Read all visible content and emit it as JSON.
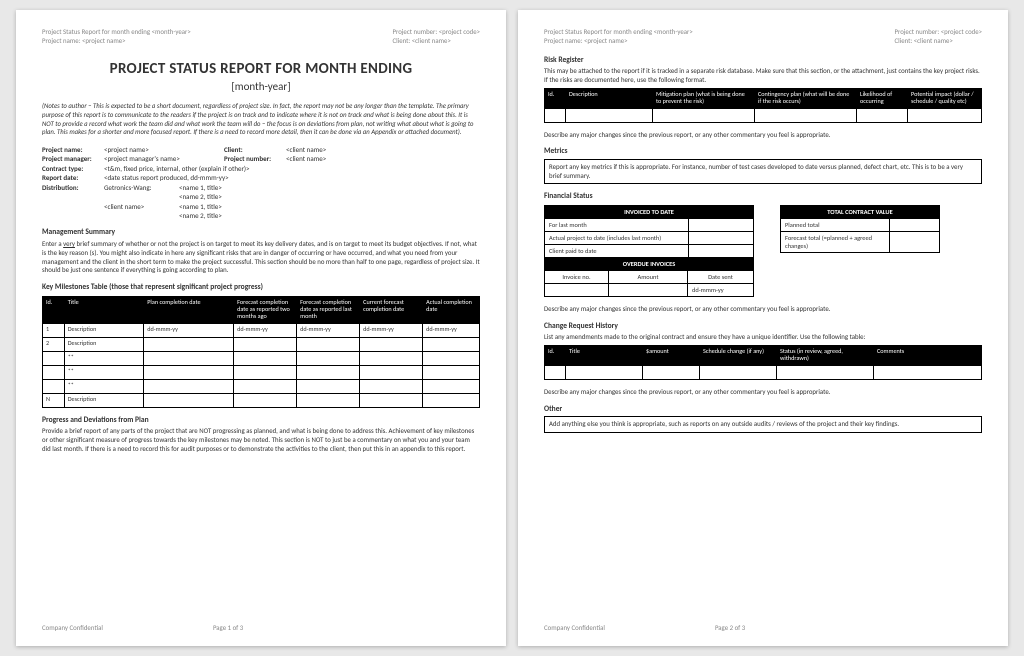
{
  "header": {
    "left1": "Project Status Report for month ending <month-year>",
    "left2": "Project name: <project name>",
    "right1": "Project number: <project code>",
    "right2": "Client: <client name>"
  },
  "page1": {
    "title": "PROJECT STATUS REPORT FOR MONTH ENDING",
    "subtitle": "[month-year]",
    "notes": "(Notes to author – This is expected to be a short document, regardless of project size.  In fact, the report may not be any longer than the template.  The primary purpose of this report is to communicate to the readers if the project is on track and to indicate where it is not on track and what is being done about this.  It is NOT to provide a record what work the team did and what work the team will do – the focus is on deviations from plan, not writing what about what is going to plan.  This makes for a shorter and more focused report.  If there is a need to record more detail, then it can be done via an Appendix or attached document).",
    "meta": {
      "project_name_l": "Project name:",
      "project_name_v": "<project name>",
      "client_l": "Client:",
      "client_v": "<client name>",
      "pm_l": "Project manager:",
      "pm_v": "<project manager's name>",
      "pn_l": "Project number:",
      "pn_v": "<client name>",
      "ct_l": "Contract type:",
      "ct_v": "<t&m, fixed price, internal,  other  (explain if other)>",
      "rd_l": "Report date:",
      "rd_v": "<date status report produced, dd-mmm-yy>",
      "dist_l": "Distribution:",
      "dist_v1": "Getronics-Wang:",
      "dist_n1": "<name 1, title>",
      "dist_n2": "<name 2, title>",
      "dist_c": "<client name>",
      "dist_n3": "<name 1, title>",
      "dist_n4": "<name 2, title>"
    },
    "mgmt_h": "Management Summary",
    "mgmt_body_pre": "Enter a ",
    "mgmt_body_u": "very",
    "mgmt_body_post": " brief summary of whether or not the project is on target to meet its key delivery dates, and is on target to meet its budget objectives.   If not, what is the key reason (s).  You might also indicate in here any significant risks that are in danger of occurring or have occurred, and what you need from your management and the client in the short term to make the project successful.  This section should be no more than half to one page, regardless of project size.  It should be just one sentence if everything is going according to plan.",
    "milestones_h": "Key Milestones Table (those that represent significant project progress)",
    "milestones": {
      "cols": [
        "Id.",
        "Title",
        "Plan completion date",
        "Forecast completion date as reported two months ago",
        "Forecast completion date as reported last month",
        "Current forecast completion date",
        "Actual completion date"
      ],
      "rows": [
        [
          "1",
          "Description",
          "dd-mmm-yy",
          "dd-mmm-yy",
          "dd-mmm-yy",
          "dd-mmm-yy",
          "dd-mmm-yy"
        ],
        [
          "2",
          "Description",
          "",
          "",
          "",
          "",
          ""
        ],
        [
          "",
          "**",
          "",
          "",
          "",
          "",
          ""
        ],
        [
          "",
          "**",
          "",
          "",
          "",
          "",
          ""
        ],
        [
          "",
          "**",
          "",
          "",
          "",
          "",
          ""
        ],
        [
          "N",
          "Description",
          "",
          "",
          "",
          "",
          ""
        ]
      ]
    },
    "prog_h": "Progress and Deviations from Plan",
    "prog_body": "Provide a brief report of any parts of the project that are NOT progressing as planned, and what is being done to address this.  Achievement of key milestones or other significant measure of progress towards the key milestones may be noted.  This section is NOT to just be a commentary on what you and your team did last month.  If there is a need to record this for audit purposes or to demonstrate the activities to the client, then put this in an appendix to this report.",
    "footer_conf": "Company Confidential",
    "footer_page": "Page 1 of 3"
  },
  "page2": {
    "risk_h": "Risk Register",
    "risk_intro": "This may be attached to the report if it is tracked in a separate risk database.  Make sure that this section, or the attachment, just contains the key project risks.  If the risks are documented here, use the following format.",
    "risk_cols": [
      "Id.",
      "Description",
      "Mitigation plan (what is being done to prevent the risk)",
      "Contingency plan (what will be done if the risk occurs)",
      "Likelihood of occurring",
      "Potential impact (dollar / schedule / quality etc)"
    ],
    "describe": "Describe any major changes since the previous report, or any other commentary you feel is appropriate.",
    "metrics_h": "Metrics",
    "metrics_body": "Report any key metrics if this is appropriate.  For instance, number of test cases developed to date versus planned, defect chart, etc.  This is to be a very brief summary.",
    "fin_h": "Financial Status",
    "fin_left_h": "INVOICED TO DATE",
    "fin_left_rows": [
      "For last month",
      "Actual project to date (includes last month)",
      "Client paid to date"
    ],
    "fin_over_h": "OVERDUE INVOICES",
    "fin_over_cols": [
      "Invoice no.",
      "Amount",
      "Date sent"
    ],
    "fin_over_val": "dd-mmm-yy",
    "fin_right_h": "TOTAL CONTRACT VALUE",
    "fin_right_rows": [
      "Planned total",
      "Forecast total (=planned + agreed changes)"
    ],
    "change_h": "Change Request History",
    "change_intro": "List any amendments made to the original contract and ensure they have a unique identifier. Use the following table:",
    "change_cols": [
      "Id.",
      "Title",
      "$amount",
      "Schedule change (if any)",
      "Status (in review, agreed, withdrawn)",
      "Comments"
    ],
    "other_h": "Other",
    "other_body": "Add anything else you think is appropriate, such as reports on any outside audits / reviews of the project and their key findings.",
    "footer_page": "Page 2 of 3"
  }
}
